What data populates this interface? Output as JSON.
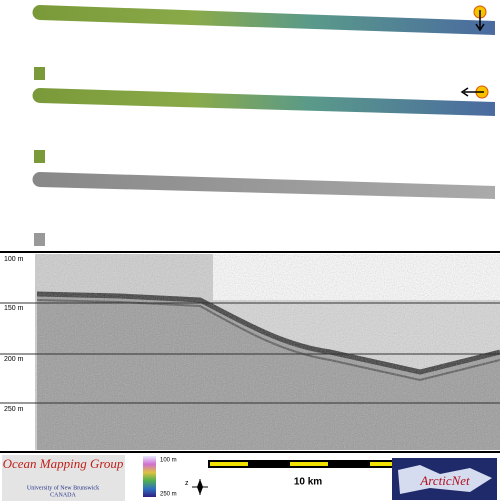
{
  "depth_labels": [
    "100 m",
    "150 m",
    "200 m",
    "250 m"
  ],
  "logo": {
    "title": "Ocean Mapping Group",
    "university": "University of New Brunswick",
    "country": "CANADA"
  },
  "color_scale": {
    "top": "100 m",
    "bottom": "250 m"
  },
  "north_label": "z",
  "scale_bar": "10 km",
  "partner": "ArcticNet"
}
